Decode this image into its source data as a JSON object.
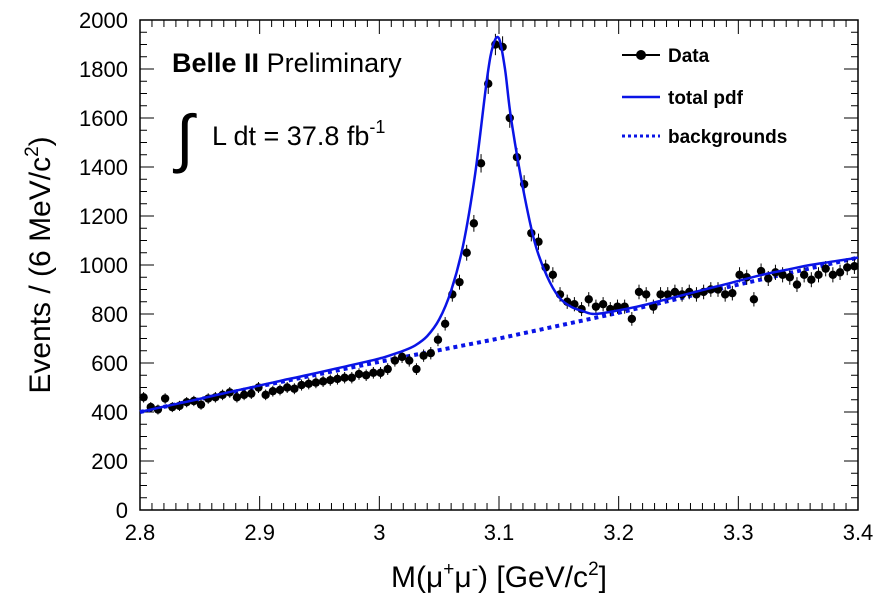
{
  "chart_data": {
    "type": "scatter",
    "title": "",
    "xlabel": {
      "base": "M(",
      "mu1": "μ",
      "sup1": "+",
      "mu2": "μ",
      "sup2": "-",
      "unit": ") [GeV/c",
      "unit_sup": "2",
      "close": "]"
    },
    "ylabel": {
      "text": "Events / (6 MeV/c",
      "sup": "2",
      "close": ")"
    },
    "xlim": [
      2.8,
      3.4
    ],
    "ylim": [
      0,
      2000
    ],
    "x_ticks": [
      "2.8",
      "2.9",
      "3",
      "3.1",
      "3.2",
      "3.3",
      "3.4"
    ],
    "y_ticks": [
      "0",
      "200",
      "400",
      "600",
      "800",
      "1000",
      "1200",
      "1400",
      "1600",
      "1800",
      "2000"
    ],
    "annotations": {
      "experiment": "Belle II",
      "status": "Preliminary",
      "lumi_text": "L dt = 37.8 fb",
      "lumi_sup": "-1"
    },
    "legend": {
      "placement": "top-right",
      "entries": [
        {
          "label": "Data",
          "style": "marker"
        },
        {
          "label": "total pdf",
          "style": "solid"
        },
        {
          "label": "backgrounds",
          "style": "dotted"
        }
      ]
    },
    "colors": {
      "data": "#000000",
      "fit": "#0a14e6",
      "background": "#0a14e6"
    },
    "series": [
      {
        "name": "Data",
        "kind": "points",
        "x": [
          2.803,
          2.809,
          2.815,
          2.821,
          2.827,
          2.833,
          2.839,
          2.845,
          2.851,
          2.857,
          2.863,
          2.869,
          2.875,
          2.881,
          2.887,
          2.893,
          2.899,
          2.905,
          2.911,
          2.917,
          2.923,
          2.929,
          2.935,
          2.941,
          2.947,
          2.953,
          2.959,
          2.965,
          2.971,
          2.977,
          2.983,
          2.989,
          2.995,
          3.001,
          3.007,
          3.013,
          3.019,
          3.025,
          3.031,
          3.037,
          3.043,
          3.049,
          3.055,
          3.061,
          3.067,
          3.073,
          3.079,
          3.085,
          3.091,
          3.097,
          3.103,
          3.109,
          3.115,
          3.121,
          3.127,
          3.133,
          3.139,
          3.145,
          3.151,
          3.157,
          3.163,
          3.169,
          3.175,
          3.181,
          3.187,
          3.193,
          3.199,
          3.205,
          3.211,
          3.217,
          3.223,
          3.229,
          3.235,
          3.241,
          3.247,
          3.253,
          3.259,
          3.265,
          3.271,
          3.277,
          3.283,
          3.289,
          3.295,
          3.301,
          3.307,
          3.313,
          3.319,
          3.325,
          3.331,
          3.337,
          3.343,
          3.349,
          3.355,
          3.361,
          3.367,
          3.373,
          3.379,
          3.385,
          3.391,
          3.397
        ],
        "y": [
          460,
          420,
          410,
          455,
          420,
          425,
          440,
          445,
          430,
          455,
          460,
          470,
          480,
          460,
          470,
          475,
          500,
          470,
          485,
          490,
          500,
          495,
          510,
          515,
          520,
          525,
          530,
          535,
          540,
          540,
          555,
          550,
          560,
          560,
          575,
          610,
          625,
          610,
          575,
          630,
          640,
          695,
          760,
          880,
          930,
          1050,
          1170,
          1415,
          1740,
          1900,
          1890,
          1600,
          1440,
          1330,
          1130,
          1095,
          990,
          960,
          880,
          850,
          840,
          820,
          860,
          830,
          840,
          820,
          830,
          830,
          780,
          890,
          880,
          830,
          880,
          880,
          890,
          880,
          890,
          880,
          890,
          900,
          900,
          880,
          885,
          960,
          950,
          860,
          975,
          945,
          970,
          960,
          950,
          920,
          960,
          940,
          960,
          985,
          960,
          970,
          990,
          995
        ]
      },
      {
        "name": "total pdf",
        "kind": "curve",
        "x": [
          2.8,
          2.82,
          2.84,
          2.86,
          2.88,
          2.9,
          2.92,
          2.94,
          2.96,
          2.98,
          3.0,
          3.01,
          3.02,
          3.03,
          3.04,
          3.05,
          3.06,
          3.07,
          3.08,
          3.09,
          3.095,
          3.1,
          3.105,
          3.11,
          3.12,
          3.13,
          3.14,
          3.15,
          3.16,
          3.17,
          3.18,
          3.2,
          3.22,
          3.24,
          3.26,
          3.28,
          3.3,
          3.32,
          3.34,
          3.36,
          3.38,
          3.4
        ],
        "y": [
          400,
          422,
          443,
          465,
          487,
          508,
          530,
          551,
          573,
          595,
          618,
          633,
          650,
          672,
          710,
          778,
          895,
          1080,
          1370,
          1760,
          1895,
          1925,
          1800,
          1600,
          1315,
          1090,
          955,
          870,
          830,
          812,
          800,
          815,
          835,
          860,
          885,
          910,
          935,
          960,
          980,
          1000,
          1015,
          1030
        ]
      },
      {
        "name": "backgrounds",
        "kind": "curve",
        "x": [
          2.8,
          2.9,
          3.0,
          3.1,
          3.2,
          3.3,
          3.4
        ],
        "y": [
          400,
          505,
          605,
          700,
          805,
          920,
          1030
        ]
      }
    ]
  }
}
